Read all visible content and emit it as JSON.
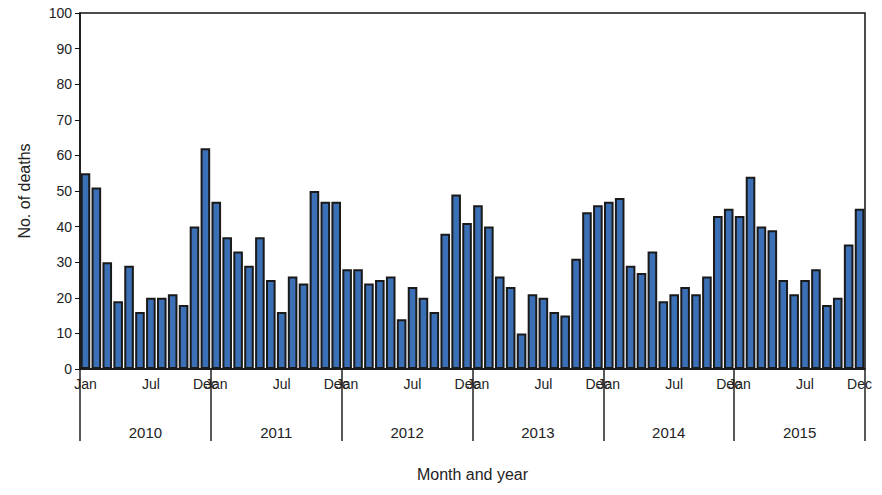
{
  "chart_data": {
    "type": "bar",
    "xlabel": "Month and year",
    "ylabel": "No. of deaths",
    "categories": [
      "Jan",
      null,
      null,
      null,
      null,
      null,
      "Jul",
      null,
      null,
      null,
      null,
      "Dec",
      "Jan",
      null,
      null,
      null,
      null,
      null,
      "Jul",
      null,
      null,
      null,
      null,
      "Dec",
      "Jan",
      null,
      null,
      null,
      null,
      null,
      "Jul",
      null,
      null,
      null,
      null,
      "Dec",
      "Jan",
      null,
      null,
      null,
      null,
      null,
      "Jul",
      null,
      null,
      null,
      null,
      "Dec",
      "Jan",
      null,
      null,
      null,
      null,
      null,
      "Jul",
      null,
      null,
      null,
      null,
      "Dec",
      "Jan",
      null,
      null,
      null,
      null,
      null,
      "Jul",
      null,
      null,
      null,
      null,
      "Dec"
    ],
    "values": [
      55,
      51,
      30,
      19,
      29,
      16,
      20,
      20,
      21,
      18,
      40,
      62,
      47,
      37,
      33,
      29,
      37,
      25,
      16,
      26,
      24,
      50,
      47,
      47,
      28,
      28,
      24,
      25,
      26,
      14,
      23,
      20,
      16,
      38,
      49,
      41,
      46,
      40,
      26,
      23,
      10,
      21,
      20,
      16,
      15,
      31,
      44,
      46,
      47,
      48,
      29,
      27,
      33,
      19,
      21,
      23,
      21,
      26,
      43,
      45,
      43,
      54,
      40,
      39,
      25,
      21,
      25,
      28,
      18,
      20,
      35,
      45
    ],
    "year_labels": [
      "2010",
      "2011",
      "2012",
      "2013",
      "2014",
      "2015"
    ],
    "color": "#3b6fb6",
    "ylim": [
      0,
      100
    ],
    "yticks": [
      0,
      10,
      20,
      30,
      40,
      50,
      60,
      70,
      80,
      90,
      100
    ],
    "grid": false
  }
}
